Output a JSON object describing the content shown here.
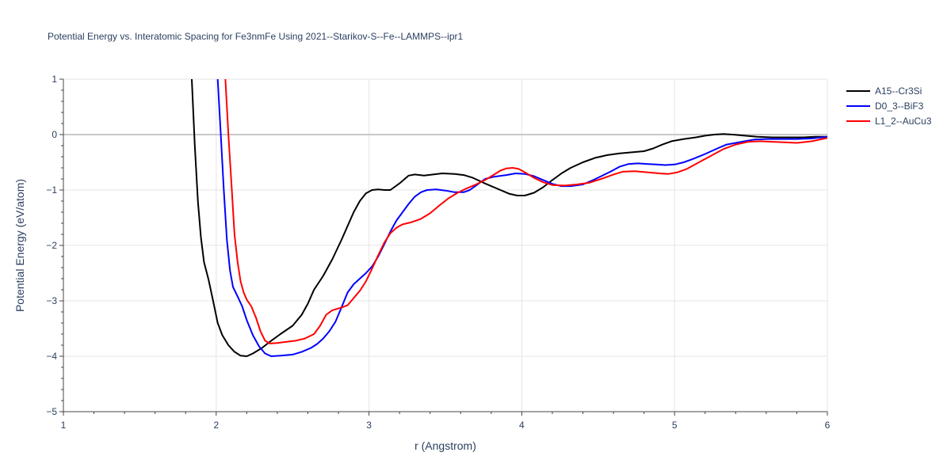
{
  "chart_data": {
    "type": "line",
    "title": "Potential Energy vs. Interatomic Spacing for Fe3nmFe Using 2021--Starikov-S--Fe--LAMMPS--ipr1",
    "xlabel": "r (Angstrom)",
    "ylabel": "Potential Energy (eV/atom)",
    "xlim": [
      1,
      6
    ],
    "ylim": [
      -5,
      1
    ],
    "xticks": [
      1,
      2,
      3,
      4,
      5,
      6
    ],
    "yticks": [
      -5,
      -4,
      -3,
      -2,
      -1,
      0,
      1
    ],
    "xtick_labels": [
      "1",
      "2",
      "3",
      "4",
      "5",
      "6"
    ],
    "ytick_labels": [
      "−5",
      "−4",
      "−3",
      "−2",
      "−1",
      "0",
      "1"
    ],
    "grid": true,
    "legend_position": "top-right",
    "series": [
      {
        "name": "A15--Cr3Si",
        "color": "#000000",
        "points": [
          [
            1.84,
            1.0
          ],
          [
            1.86,
            -0.2
          ],
          [
            1.88,
            -1.2
          ],
          [
            1.9,
            -1.85
          ],
          [
            1.92,
            -2.3
          ],
          [
            1.95,
            -2.62
          ],
          [
            1.98,
            -3.0
          ],
          [
            2.01,
            -3.4
          ],
          [
            2.04,
            -3.62
          ],
          [
            2.08,
            -3.8
          ],
          [
            2.12,
            -3.92
          ],
          [
            2.16,
            -3.99
          ],
          [
            2.2,
            -4.0
          ],
          [
            2.24,
            -3.95
          ],
          [
            2.3,
            -3.85
          ],
          [
            2.36,
            -3.72
          ],
          [
            2.42,
            -3.6
          ],
          [
            2.5,
            -3.45
          ],
          [
            2.56,
            -3.25
          ],
          [
            2.6,
            -3.05
          ],
          [
            2.64,
            -2.8
          ],
          [
            2.7,
            -2.55
          ],
          [
            2.76,
            -2.25
          ],
          [
            2.82,
            -1.9
          ],
          [
            2.86,
            -1.65
          ],
          [
            2.9,
            -1.4
          ],
          [
            2.94,
            -1.2
          ],
          [
            2.98,
            -1.06
          ],
          [
            3.02,
            -1.0
          ],
          [
            3.06,
            -0.99
          ],
          [
            3.1,
            -1.0
          ],
          [
            3.14,
            -1.0
          ],
          [
            3.2,
            -0.88
          ],
          [
            3.26,
            -0.74
          ],
          [
            3.3,
            -0.72
          ],
          [
            3.36,
            -0.74
          ],
          [
            3.42,
            -0.72
          ],
          [
            3.48,
            -0.7
          ],
          [
            3.56,
            -0.71
          ],
          [
            3.62,
            -0.73
          ],
          [
            3.68,
            -0.78
          ],
          [
            3.75,
            -0.87
          ],
          [
            3.8,
            -0.93
          ],
          [
            3.86,
            -1.0
          ],
          [
            3.92,
            -1.07
          ],
          [
            3.97,
            -1.1
          ],
          [
            4.02,
            -1.1
          ],
          [
            4.08,
            -1.05
          ],
          [
            4.14,
            -0.95
          ],
          [
            4.2,
            -0.82
          ],
          [
            4.26,
            -0.7
          ],
          [
            4.32,
            -0.6
          ],
          [
            4.4,
            -0.5
          ],
          [
            4.48,
            -0.42
          ],
          [
            4.56,
            -0.37
          ],
          [
            4.64,
            -0.34
          ],
          [
            4.72,
            -0.32
          ],
          [
            4.8,
            -0.3
          ],
          [
            4.86,
            -0.25
          ],
          [
            4.92,
            -0.18
          ],
          [
            4.98,
            -0.12
          ],
          [
            5.06,
            -0.08
          ],
          [
            5.14,
            -0.05
          ],
          [
            5.2,
            -0.02
          ],
          [
            5.26,
            0.0
          ],
          [
            5.32,
            0.01
          ],
          [
            5.38,
            0.0
          ],
          [
            5.46,
            -0.02
          ],
          [
            5.54,
            -0.04
          ],
          [
            5.64,
            -0.05
          ],
          [
            5.74,
            -0.05
          ],
          [
            5.84,
            -0.05
          ],
          [
            5.92,
            -0.04
          ],
          [
            6.0,
            -0.04
          ]
        ]
      },
      {
        "name": "D0_3--BiF3",
        "color": "#0000ff",
        "points": [
          [
            2.01,
            1.0
          ],
          [
            2.03,
            0.0
          ],
          [
            2.05,
            -1.0
          ],
          [
            2.07,
            -1.9
          ],
          [
            2.09,
            -2.45
          ],
          [
            2.11,
            -2.75
          ],
          [
            2.14,
            -2.92
          ],
          [
            2.17,
            -3.1
          ],
          [
            2.2,
            -3.35
          ],
          [
            2.24,
            -3.62
          ],
          [
            2.28,
            -3.82
          ],
          [
            2.32,
            -3.95
          ],
          [
            2.36,
            -4.0
          ],
          [
            2.42,
            -3.99
          ],
          [
            2.5,
            -3.97
          ],
          [
            2.56,
            -3.92
          ],
          [
            2.62,
            -3.85
          ],
          [
            2.66,
            -3.78
          ],
          [
            2.7,
            -3.68
          ],
          [
            2.74,
            -3.55
          ],
          [
            2.78,
            -3.38
          ],
          [
            2.82,
            -3.12
          ],
          [
            2.86,
            -2.85
          ],
          [
            2.9,
            -2.7
          ],
          [
            2.94,
            -2.6
          ],
          [
            2.98,
            -2.5
          ],
          [
            3.02,
            -2.38
          ],
          [
            3.06,
            -2.2
          ],
          [
            3.1,
            -1.98
          ],
          [
            3.14,
            -1.75
          ],
          [
            3.18,
            -1.55
          ],
          [
            3.22,
            -1.4
          ],
          [
            3.26,
            -1.25
          ],
          [
            3.3,
            -1.12
          ],
          [
            3.34,
            -1.04
          ],
          [
            3.38,
            -1.0
          ],
          [
            3.44,
            -0.99
          ],
          [
            3.5,
            -1.01
          ],
          [
            3.56,
            -1.04
          ],
          [
            3.62,
            -1.04
          ],
          [
            3.66,
            -1.0
          ],
          [
            3.7,
            -0.92
          ],
          [
            3.76,
            -0.8
          ],
          [
            3.82,
            -0.76
          ],
          [
            3.9,
            -0.73
          ],
          [
            3.96,
            -0.7
          ],
          [
            4.02,
            -0.71
          ],
          [
            4.08,
            -0.75
          ],
          [
            4.14,
            -0.82
          ],
          [
            4.2,
            -0.89
          ],
          [
            4.26,
            -0.93
          ],
          [
            4.32,
            -0.93
          ],
          [
            4.4,
            -0.9
          ],
          [
            4.46,
            -0.83
          ],
          [
            4.52,
            -0.75
          ],
          [
            4.58,
            -0.67
          ],
          [
            4.64,
            -0.58
          ],
          [
            4.7,
            -0.53
          ],
          [
            4.76,
            -0.52
          ],
          [
            4.82,
            -0.53
          ],
          [
            4.88,
            -0.54
          ],
          [
            4.94,
            -0.55
          ],
          [
            5.0,
            -0.54
          ],
          [
            5.06,
            -0.5
          ],
          [
            5.12,
            -0.44
          ],
          [
            5.2,
            -0.35
          ],
          [
            5.28,
            -0.25
          ],
          [
            5.34,
            -0.18
          ],
          [
            5.4,
            -0.15
          ],
          [
            5.46,
            -0.12
          ],
          [
            5.52,
            -0.09
          ],
          [
            5.6,
            -0.08
          ],
          [
            5.7,
            -0.08
          ],
          [
            5.8,
            -0.08
          ],
          [
            5.9,
            -0.07
          ],
          [
            6.0,
            -0.04
          ]
        ]
      },
      {
        "name": "L1_2--AuCu3",
        "color": "#ff0000",
        "points": [
          [
            2.06,
            1.0
          ],
          [
            2.08,
            0.0
          ],
          [
            2.1,
            -0.9
          ],
          [
            2.12,
            -1.8
          ],
          [
            2.14,
            -2.3
          ],
          [
            2.16,
            -2.65
          ],
          [
            2.18,
            -2.85
          ],
          [
            2.2,
            -2.98
          ],
          [
            2.23,
            -3.1
          ],
          [
            2.26,
            -3.3
          ],
          [
            2.29,
            -3.55
          ],
          [
            2.32,
            -3.72
          ],
          [
            2.35,
            -3.77
          ],
          [
            2.4,
            -3.76
          ],
          [
            2.46,
            -3.74
          ],
          [
            2.52,
            -3.72
          ],
          [
            2.58,
            -3.68
          ],
          [
            2.64,
            -3.6
          ],
          [
            2.68,
            -3.45
          ],
          [
            2.72,
            -3.25
          ],
          [
            2.76,
            -3.17
          ],
          [
            2.82,
            -3.12
          ],
          [
            2.86,
            -3.08
          ],
          [
            2.9,
            -2.95
          ],
          [
            2.94,
            -2.82
          ],
          [
            2.98,
            -2.65
          ],
          [
            3.02,
            -2.42
          ],
          [
            3.06,
            -2.18
          ],
          [
            3.1,
            -1.95
          ],
          [
            3.14,
            -1.78
          ],
          [
            3.18,
            -1.68
          ],
          [
            3.22,
            -1.62
          ],
          [
            3.28,
            -1.58
          ],
          [
            3.34,
            -1.52
          ],
          [
            3.4,
            -1.42
          ],
          [
            3.46,
            -1.28
          ],
          [
            3.52,
            -1.15
          ],
          [
            3.58,
            -1.05
          ],
          [
            3.64,
            -0.97
          ],
          [
            3.7,
            -0.9
          ],
          [
            3.76,
            -0.82
          ],
          [
            3.82,
            -0.72
          ],
          [
            3.86,
            -0.65
          ],
          [
            3.9,
            -0.61
          ],
          [
            3.94,
            -0.6
          ],
          [
            3.98,
            -0.62
          ],
          [
            4.02,
            -0.68
          ],
          [
            4.08,
            -0.78
          ],
          [
            4.14,
            -0.86
          ],
          [
            4.2,
            -0.91
          ],
          [
            4.28,
            -0.92
          ],
          [
            4.36,
            -0.9
          ],
          [
            4.44,
            -0.87
          ],
          [
            4.52,
            -0.8
          ],
          [
            4.6,
            -0.72
          ],
          [
            4.66,
            -0.67
          ],
          [
            4.74,
            -0.66
          ],
          [
            4.82,
            -0.68
          ],
          [
            4.9,
            -0.7
          ],
          [
            4.96,
            -0.71
          ],
          [
            5.02,
            -0.68
          ],
          [
            5.08,
            -0.62
          ],
          [
            5.16,
            -0.5
          ],
          [
            5.24,
            -0.38
          ],
          [
            5.32,
            -0.26
          ],
          [
            5.4,
            -0.18
          ],
          [
            5.48,
            -0.13
          ],
          [
            5.56,
            -0.12
          ],
          [
            5.64,
            -0.13
          ],
          [
            5.72,
            -0.14
          ],
          [
            5.8,
            -0.15
          ],
          [
            5.9,
            -0.12
          ],
          [
            6.0,
            -0.06
          ]
        ]
      }
    ]
  }
}
